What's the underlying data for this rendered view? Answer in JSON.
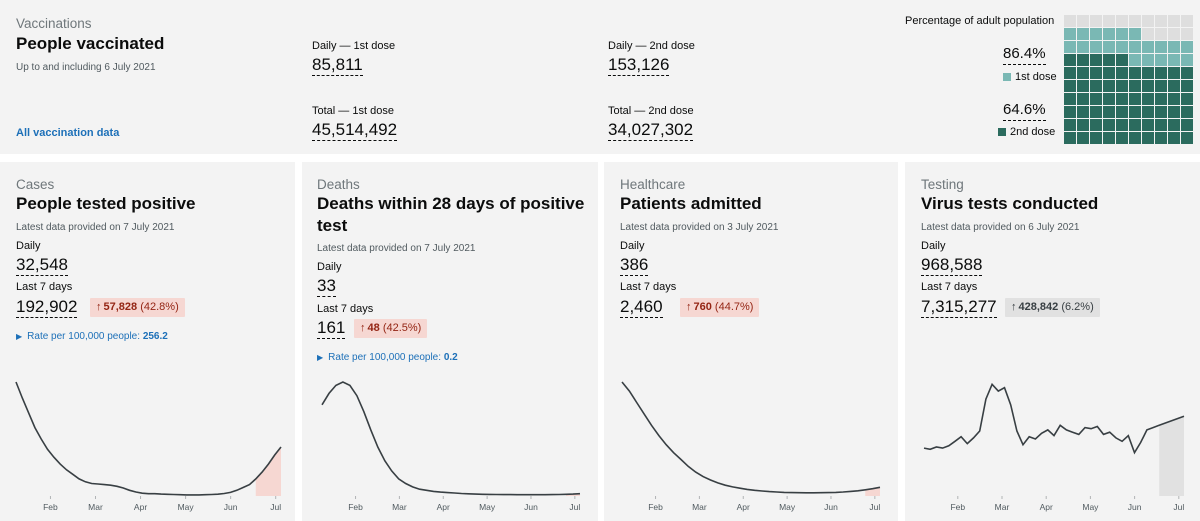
{
  "vaccinations": {
    "category": "Vaccinations",
    "title": "People vaccinated",
    "subtitle": "Up to and including 6 July 2021",
    "link": "All vaccination data",
    "daily_1st_label": "Daily — 1st dose",
    "daily_1st_value": "85,811",
    "daily_2nd_label": "Daily — 2nd dose",
    "daily_2nd_value": "153,126",
    "total_1st_label": "Total — 1st dose",
    "total_1st_value": "45,514,492",
    "total_2nd_label": "Total — 2nd dose",
    "total_2nd_value": "34,027,302",
    "percentage_title": "Percentage of adult population",
    "pct_1st": "86.4%",
    "pct_1st_label": "1st dose",
    "pct_2nd": "64.6%",
    "pct_2nd_label": "2nd dose",
    "pct_1st_fraction": 0.864,
    "pct_2nd_fraction": 0.646,
    "color_1st": "#7ab8b4",
    "color_2nd": "#2b6b5e",
    "color_empty": "#dedede"
  },
  "cards": {
    "cases": {
      "category": "Cases",
      "title": "People tested positive",
      "subtitle": "Latest data provided on 7 July 2021",
      "daily_label": "Daily",
      "daily_value": "32,548",
      "week_label": "Last 7 days",
      "week_value": "192,902",
      "change_value": "57,828",
      "change_pct": "(42.8%)",
      "rate_label": "Rate per 100,000 people:",
      "rate_value": "256.2"
    },
    "deaths": {
      "category": "Deaths",
      "title_line1": "Deaths within 28 days of positive",
      "title_line2": "test",
      "subtitle": "Latest data provided on 7 July 2021",
      "daily_label": "Daily",
      "daily_value": "33",
      "week_label": "Last 7 days",
      "week_value": "161",
      "change_value": "48",
      "change_pct": "(42.5%)",
      "rate_label": "Rate per 100,000 people:",
      "rate_value": "0.2"
    },
    "healthcare": {
      "category": "Healthcare",
      "title": "Patients admitted",
      "subtitle": "Latest data provided on 3 July 2021",
      "daily_label": "Daily",
      "daily_value": "386",
      "week_label": "Last 7 days",
      "week_value": "2,460",
      "change_value": "760",
      "change_pct": "(44.7%)"
    },
    "testing": {
      "category": "Testing",
      "title": "Virus tests conducted",
      "subtitle": "Latest data provided on 6 July 2021",
      "daily_label": "Daily",
      "daily_value": "968,588",
      "week_label": "Last 7 days",
      "week_value": "7,315,277",
      "change_value": "428,842",
      "change_pct": "(6.2%)"
    }
  },
  "chart_data": [
    {
      "type": "line",
      "x_ticks": [
        "Feb",
        "Mar",
        "Apr",
        "May",
        "Jun",
        "Jul"
      ],
      "values": [
        100,
        86,
        73,
        60,
        50,
        41,
        34,
        28,
        23,
        19,
        15,
        12.5,
        11,
        10.5,
        10,
        9.5,
        8.5,
        7,
        5,
        3.5,
        2.5,
        2,
        2,
        1.7,
        1.5,
        1.3,
        1.1,
        1,
        1,
        1,
        1.1,
        1.3,
        1.6,
        2.2,
        3.2,
        5,
        7.5,
        10,
        15,
        21,
        28,
        36,
        43
      ],
      "highlight_last": 5,
      "highlight_color": "#f6d7d2"
    },
    {
      "type": "line",
      "x_ticks": [
        "Feb",
        "Mar",
        "Apr",
        "May",
        "Jun",
        "Jul"
      ],
      "values": [
        80,
        90,
        97,
        100,
        97,
        88,
        74,
        58,
        43,
        31,
        22,
        15,
        11,
        8,
        6,
        5,
        4,
        3.4,
        3,
        2.6,
        2.2,
        1.9,
        1.7,
        1.5,
        1.4,
        1.3,
        1.2,
        1.2,
        1.1,
        1.1,
        1.1,
        1.1,
        1.1,
        1.2,
        1.3,
        1.5,
        1.7,
        2
      ],
      "highlight_last": 3,
      "highlight_color": "#f6d7d2"
    },
    {
      "type": "line",
      "x_ticks": [
        "Feb",
        "Mar",
        "Apr",
        "May",
        "Jun",
        "Jul"
      ],
      "values": [
        100,
        92,
        82,
        72,
        62,
        53,
        45,
        38,
        32,
        26,
        21,
        17,
        14,
        11.5,
        9.5,
        8,
        6.8,
        5.8,
        5,
        4.4,
        3.9,
        3.5,
        3.2,
        3,
        2.9,
        2.8,
        2.8,
        2.9,
        3,
        3.2,
        3.5,
        4,
        4.6,
        5.4,
        6.4,
        7.6
      ],
      "highlight_last": 3,
      "highlight_color": "#f6d7d2"
    },
    {
      "type": "line",
      "x_ticks": [
        "Feb",
        "Mar",
        "Apr",
        "May",
        "Jun",
        "Jul"
      ],
      "values": [
        42,
        41,
        43,
        42,
        44,
        48,
        52,
        46,
        51,
        57,
        85,
        98,
        92,
        95,
        80,
        57,
        45,
        52,
        50,
        55,
        58,
        53,
        62,
        58,
        56,
        54,
        60,
        59,
        61,
        54,
        56,
        51,
        48,
        53,
        38,
        47,
        58,
        60,
        62,
        64,
        66,
        68,
        70
      ],
      "ylim": [
        0,
        100
      ],
      "highlight_last": 5,
      "highlight_color": "#e1e1e1"
    }
  ]
}
